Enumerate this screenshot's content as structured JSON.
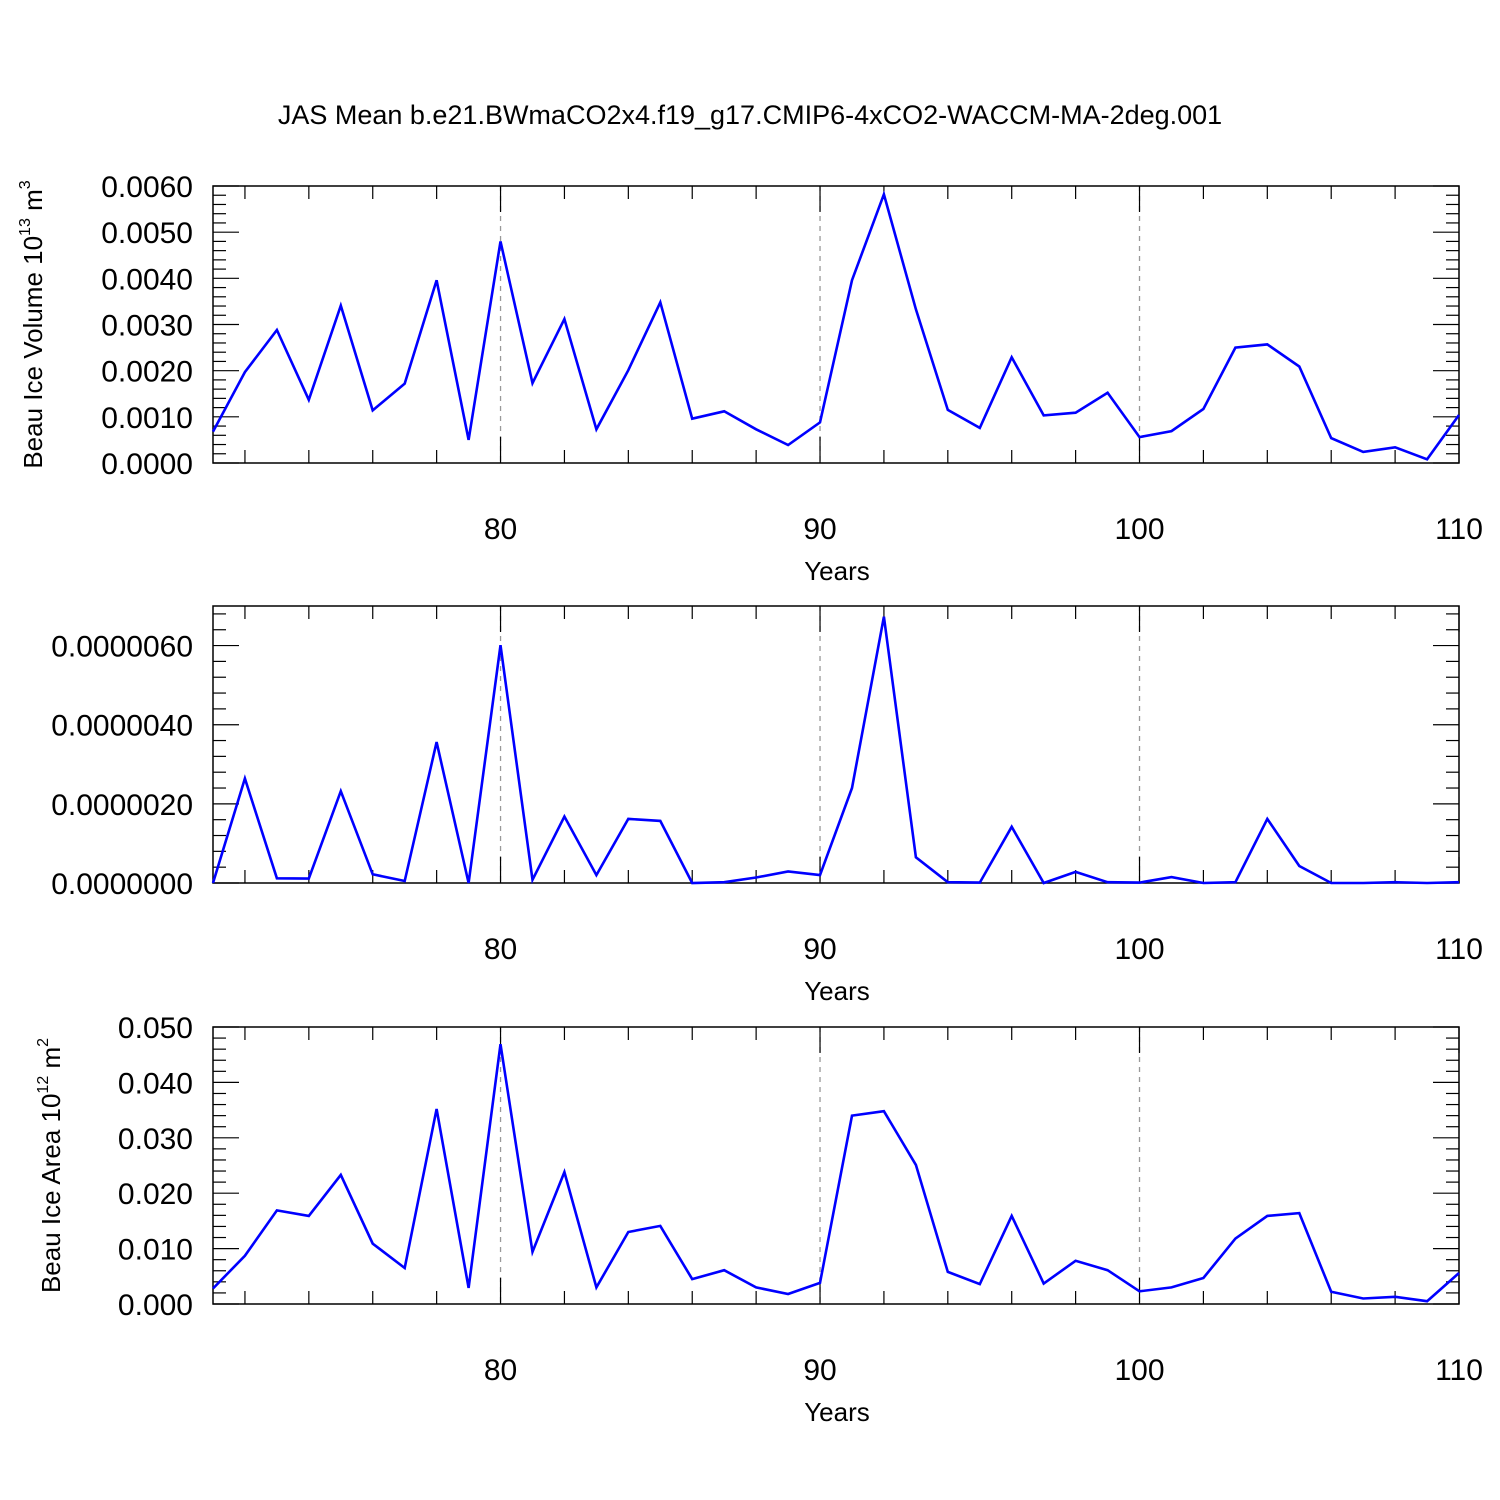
{
  "title": "JAS Mean b.e21.BWmaCO2x4.f19_g17.CMIP6-4xCO2-WACCM-MA-2deg.001",
  "chart_data": [
    {
      "type": "line",
      "ylabel": "Beau Ice Volume 10",
      "ylabel_sup": "13",
      "ylabel_unit": "m",
      "ylabel_unit_sup": "3",
      "xlabel": "Years",
      "xlim": [
        71,
        110
      ],
      "ylim": [
        0,
        0.006
      ],
      "xticks": [
        80,
        90,
        100,
        110
      ],
      "xtick_labels": [
        "80",
        "90",
        "100",
        "110"
      ],
      "yticks": [
        0,
        0.001,
        0.002,
        0.003,
        0.004,
        0.005,
        0.006
      ],
      "ytick_labels": [
        "0.0000",
        "0.0010",
        "0.0020",
        "0.0030",
        "0.0040",
        "0.0050",
        "0.0060"
      ],
      "grid": "dashed vertical at major x ticks",
      "x": [
        71,
        72,
        73,
        74,
        75,
        76,
        77,
        78,
        79,
        80,
        81,
        82,
        83,
        84,
        85,
        86,
        87,
        88,
        89,
        90,
        91,
        92,
        93,
        94,
        95,
        96,
        97,
        98,
        99,
        100,
        101,
        102,
        103,
        104,
        105,
        106,
        107,
        108,
        109,
        110
      ],
      "values": [
        0.00068,
        0.00197,
        0.00288,
        0.00137,
        0.00341,
        0.00114,
        0.00172,
        0.00396,
        0.0005,
        0.0048,
        0.00173,
        0.00312,
        0.00073,
        0.00201,
        0.00348,
        0.00096,
        0.00112,
        0.00073,
        0.00039,
        0.00088,
        0.00396,
        0.00582,
        0.00333,
        0.00115,
        0.00076,
        0.00229,
        0.00103,
        0.00109,
        0.00152,
        0.00056,
        0.00069,
        0.00117,
        0.0025,
        0.00257,
        0.00209,
        0.00054,
        0.00024,
        0.00034,
        8e-05,
        0.00104
      ],
      "color": "#0000ff"
    },
    {
      "type": "line",
      "ylabel": "",
      "xlabel": "Years",
      "xlim": [
        71,
        110
      ],
      "ylim": [
        0,
        7e-06
      ],
      "xticks": [
        80,
        90,
        100,
        110
      ],
      "xtick_labels": [
        "80",
        "90",
        "100",
        "110"
      ],
      "yticks": [
        0,
        2e-06,
        4e-06,
        6e-06
      ],
      "ytick_labels": [
        "0.0000000",
        "0.0000020",
        "0.0000040",
        "0.0000060"
      ],
      "grid": "dashed vertical at major x ticks",
      "x": [
        71,
        72,
        73,
        74,
        75,
        76,
        77,
        78,
        79,
        80,
        81,
        82,
        83,
        84,
        85,
        86,
        87,
        88,
        89,
        90,
        91,
        92,
        93,
        94,
        95,
        96,
        97,
        98,
        99,
        100,
        101,
        102,
        103,
        104,
        105,
        106,
        107,
        108,
        109,
        110
      ],
      "values": [
        0.0,
        2.64e-06,
        1.2e-07,
        1.1e-07,
        2.32e-06,
        2.2e-07,
        5e-08,
        3.56e-06,
        0.0,
        6.01e-06,
        8e-08,
        1.68e-06,
        2e-07,
        1.62e-06,
        1.57e-06,
        0.0,
        2e-08,
        1.4e-07,
        2.9e-07,
        2e-07,
        2.4e-06,
        6.73e-06,
        6.5e-07,
        2e-08,
        1e-08,
        1.42e-06,
        0.0,
        2.8e-07,
        2e-08,
        1e-08,
        1.5e-07,
        0.0,
        2e-08,
        1.62e-06,
        4.3e-07,
        0.0,
        0.0,
        2e-08,
        0.0,
        2e-08
      ],
      "color": "#0000ff"
    },
    {
      "type": "line",
      "ylabel": "Beau Ice Area 10",
      "ylabel_sup": "12",
      "ylabel_unit": "m",
      "ylabel_unit_sup": "2",
      "xlabel": "Years",
      "xlim": [
        71,
        110
      ],
      "ylim": [
        0,
        0.05
      ],
      "xticks": [
        80,
        90,
        100,
        110
      ],
      "xtick_labels": [
        "80",
        "90",
        "100",
        "110"
      ],
      "yticks": [
        0,
        0.01,
        0.02,
        0.03,
        0.04,
        0.05
      ],
      "ytick_labels": [
        "0.000",
        "0.010",
        "0.020",
        "0.030",
        "0.040",
        "0.050"
      ],
      "grid": "dashed vertical at major x ticks",
      "x": [
        71,
        72,
        73,
        74,
        75,
        76,
        77,
        78,
        79,
        80,
        81,
        82,
        83,
        84,
        85,
        86,
        87,
        88,
        89,
        90,
        91,
        92,
        93,
        94,
        95,
        96,
        97,
        98,
        99,
        100,
        101,
        102,
        103,
        104,
        105,
        106,
        107,
        108,
        109,
        110
      ],
      "values": [
        0.0028,
        0.0087,
        0.0169,
        0.0159,
        0.0233,
        0.0109,
        0.0065,
        0.0352,
        0.0029,
        0.0469,
        0.0094,
        0.0238,
        0.003,
        0.013,
        0.0141,
        0.0045,
        0.0061,
        0.003,
        0.0018,
        0.0038,
        0.034,
        0.0348,
        0.0251,
        0.0058,
        0.0036,
        0.0159,
        0.0037,
        0.0078,
        0.0061,
        0.0023,
        0.003,
        0.0047,
        0.0118,
        0.0159,
        0.0164,
        0.0022,
        0.001,
        0.0013,
        0.0005,
        0.0056
      ],
      "color": "#0000ff"
    }
  ]
}
